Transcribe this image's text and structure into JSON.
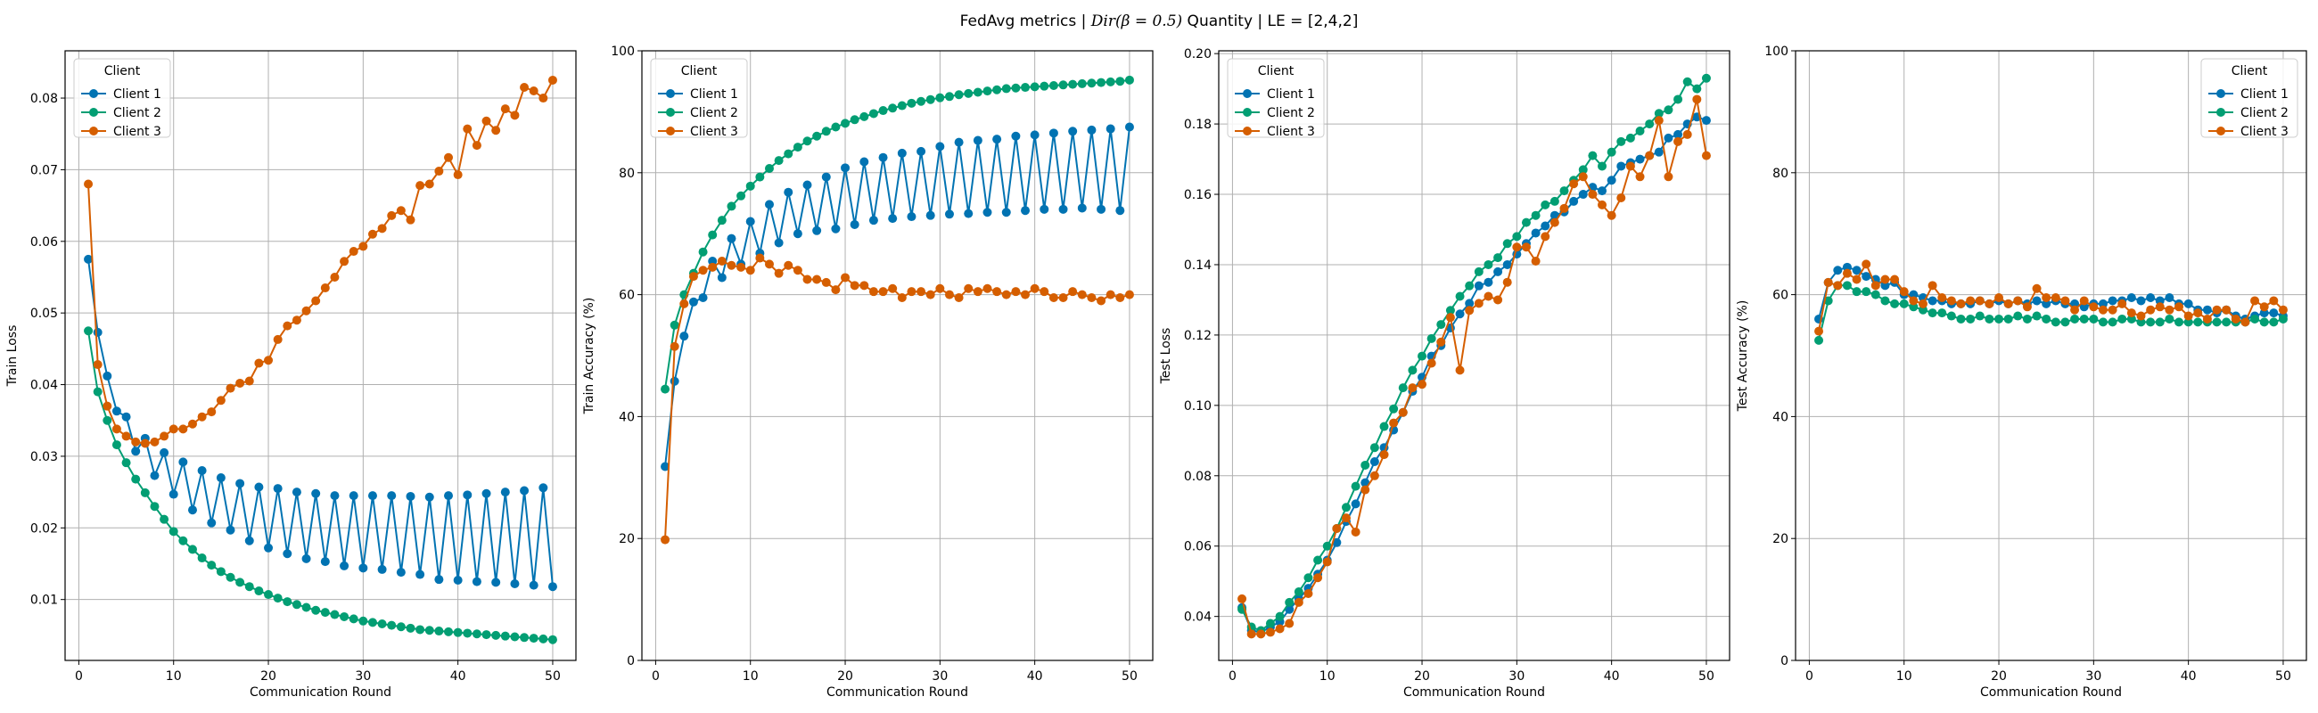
{
  "figure": {
    "title_prefix": "FedAvg metrics | ",
    "title_math": "Dir(β = 0.5)",
    "title_suffix": " Quantity | LE = [2,4,2]"
  },
  "colors": {
    "Client 1": "#0173b2",
    "Client 2": "#029e73",
    "Client 3": "#d55e00"
  },
  "chart_data": [
    {
      "type": "line",
      "xlabel": "Communication Round",
      "ylabel": "Train Loss",
      "xlim": [
        -1.45,
        52.45
      ],
      "ylim": [
        0.0015,
        0.0866
      ],
      "xticks": [
        0,
        10,
        20,
        30,
        40,
        50
      ],
      "yticks": [
        0.01,
        0.02,
        0.03,
        0.04,
        0.05,
        0.06,
        0.07,
        0.08
      ],
      "ytick_labels": [
        "0.01",
        "0.02",
        "0.03",
        "0.04",
        "0.05",
        "0.06",
        "0.07",
        "0.08"
      ],
      "legend": {
        "title": "Client",
        "location": "upper left"
      },
      "grid": true,
      "series": [
        {
          "name": "Client 1",
          "values": [
            0.0575,
            0.0473,
            0.0412,
            0.0363,
            0.0355,
            0.0307,
            0.0325,
            0.0273,
            0.0305,
            0.0247,
            0.0292,
            0.0225,
            0.028,
            0.0207,
            0.027,
            0.0197,
            0.0262,
            0.0182,
            0.0257,
            0.0172,
            0.0255,
            0.0164,
            0.025,
            0.0157,
            0.0248,
            0.0153,
            0.0245,
            0.0147,
            0.0245,
            0.0144,
            0.0245,
            0.0142,
            0.0245,
            0.0138,
            0.0244,
            0.0135,
            0.0243,
            0.0128,
            0.0245,
            0.0127,
            0.0246,
            0.0125,
            0.0248,
            0.0124,
            0.025,
            0.0122,
            0.0252,
            0.012,
            0.0256,
            0.0118
          ]
        },
        {
          "name": "Client 2",
          "values": [
            0.0475,
            0.039,
            0.035,
            0.0316,
            0.0291,
            0.0268,
            0.0249,
            0.023,
            0.0212,
            0.0195,
            0.0182,
            0.017,
            0.0158,
            0.0148,
            0.0139,
            0.0131,
            0.0124,
            0.0118,
            0.0112,
            0.0107,
            0.0102,
            0.0097,
            0.0093,
            0.0089,
            0.0085,
            0.0082,
            0.0079,
            0.0076,
            0.0073,
            0.007,
            0.0068,
            0.0066,
            0.0064,
            0.0062,
            0.006,
            0.0058,
            0.0057,
            0.0056,
            0.0055,
            0.0054,
            0.0053,
            0.0052,
            0.0051,
            0.005,
            0.0049,
            0.0048,
            0.0047,
            0.0046,
            0.0045,
            0.0044
          ]
        },
        {
          "name": "Client 3",
          "values": [
            0.068,
            0.0428,
            0.037,
            0.0338,
            0.0328,
            0.032,
            0.0318,
            0.032,
            0.0328,
            0.0338,
            0.0338,
            0.0345,
            0.0355,
            0.0362,
            0.0378,
            0.0395,
            0.0402,
            0.0405,
            0.043,
            0.0434,
            0.0463,
            0.0482,
            0.049,
            0.0503,
            0.0517,
            0.0535,
            0.055,
            0.0572,
            0.0586,
            0.0593,
            0.061,
            0.0618,
            0.0636,
            0.0643,
            0.063,
            0.0678,
            0.068,
            0.0698,
            0.0717,
            0.0693,
            0.0757,
            0.0734,
            0.0768,
            0.0755,
            0.0785,
            0.0776,
            0.0815,
            0.081,
            0.08,
            0.0825
          ]
        }
      ]
    },
    {
      "type": "line",
      "xlabel": "Communication Round",
      "ylabel": "Train Accuracy (%)",
      "xlim": [
        -1.45,
        52.45
      ],
      "ylim": [
        0,
        100
      ],
      "xticks": [
        0,
        10,
        20,
        30,
        40,
        50
      ],
      "yticks": [
        0,
        20,
        40,
        60,
        80,
        100
      ],
      "ytick_labels": [
        "0",
        "20",
        "40",
        "60",
        "80",
        "100"
      ],
      "legend": {
        "title": "Client",
        "location": "upper left"
      },
      "grid": true,
      "series": [
        {
          "name": "Client 1",
          "values": [
            31.8,
            45.8,
            53.2,
            58.8,
            59.5,
            65.5,
            62.8,
            69.2,
            65.0,
            72.0,
            66.8,
            74.8,
            68.5,
            76.8,
            70.0,
            78.0,
            70.5,
            79.3,
            70.8,
            80.8,
            71.5,
            81.8,
            72.2,
            82.5,
            72.5,
            83.2,
            72.8,
            83.5,
            73.0,
            84.3,
            73.2,
            85.0,
            73.3,
            85.3,
            73.5,
            85.5,
            73.5,
            86.0,
            73.8,
            86.2,
            74.0,
            86.5,
            74.0,
            86.8,
            74.2,
            87.0,
            74.0,
            87.2,
            73.8,
            87.5
          ]
        },
        {
          "name": "Client 2",
          "values": [
            44.5,
            55.0,
            60.0,
            63.5,
            67.0,
            69.8,
            72.2,
            74.5,
            76.2,
            77.8,
            79.3,
            80.7,
            82.0,
            83.1,
            84.2,
            85.2,
            86.0,
            86.8,
            87.5,
            88.1,
            88.7,
            89.2,
            89.7,
            90.2,
            90.6,
            91.0,
            91.4,
            91.7,
            92.0,
            92.3,
            92.5,
            92.8,
            93.0,
            93.2,
            93.4,
            93.6,
            93.8,
            93.9,
            94.0,
            94.1,
            94.2,
            94.3,
            94.4,
            94.5,
            94.6,
            94.7,
            94.8,
            94.9,
            95.0,
            95.2
          ]
        },
        {
          "name": "Client 3",
          "values": [
            19.8,
            51.5,
            58.5,
            63.0,
            64.0,
            64.5,
            65.5,
            64.8,
            64.5,
            64.0,
            66.0,
            65.0,
            63.5,
            64.8,
            64.0,
            62.5,
            62.5,
            62.0,
            60.8,
            62.8,
            61.5,
            61.5,
            60.5,
            60.5,
            61.0,
            59.5,
            60.5,
            60.5,
            60.0,
            61.0,
            60.0,
            59.5,
            61.0,
            60.5,
            61.0,
            60.5,
            60.0,
            60.5,
            60.0,
            61.0,
            60.5,
            59.5,
            59.5,
            60.5,
            60.0,
            59.5,
            59.0,
            60.0,
            59.5,
            60.0
          ]
        }
      ]
    },
    {
      "type": "line",
      "xlabel": "Communication Round",
      "ylabel": "Test Loss",
      "xlim": [
        -1.45,
        52.45
      ],
      "ylim": [
        0.0275,
        0.2008
      ],
      "xticks": [
        0,
        10,
        20,
        30,
        40,
        50
      ],
      "yticks": [
        0.04,
        0.06,
        0.08,
        0.1,
        0.12,
        0.14,
        0.16,
        0.18,
        0.2
      ],
      "ytick_labels": [
        "0.04",
        "0.06",
        "0.08",
        "0.10",
        "0.12",
        "0.14",
        "0.16",
        "0.18",
        "0.20"
      ],
      "legend": {
        "title": "Client",
        "location": "upper left"
      },
      "grid": true,
      "series": [
        {
          "name": "Client 1",
          "values": [
            0.0425,
            0.036,
            0.0355,
            0.037,
            0.0385,
            0.042,
            0.045,
            0.048,
            0.052,
            0.056,
            0.061,
            0.067,
            0.072,
            0.078,
            0.084,
            0.088,
            0.093,
            0.098,
            0.104,
            0.108,
            0.114,
            0.117,
            0.122,
            0.126,
            0.129,
            0.134,
            0.135,
            0.138,
            0.14,
            0.143,
            0.146,
            0.149,
            0.151,
            0.154,
            0.155,
            0.158,
            0.16,
            0.162,
            0.161,
            0.164,
            0.168,
            0.169,
            0.17,
            0.171,
            0.172,
            0.176,
            0.177,
            0.18,
            0.182,
            0.181
          ]
        },
        {
          "name": "Client 2",
          "values": [
            0.042,
            0.037,
            0.036,
            0.038,
            0.04,
            0.044,
            0.047,
            0.051,
            0.056,
            0.06,
            0.065,
            0.071,
            0.077,
            0.083,
            0.088,
            0.094,
            0.099,
            0.105,
            0.11,
            0.114,
            0.119,
            0.123,
            0.127,
            0.131,
            0.134,
            0.138,
            0.14,
            0.142,
            0.146,
            0.148,
            0.152,
            0.154,
            0.157,
            0.158,
            0.161,
            0.164,
            0.167,
            0.171,
            0.168,
            0.172,
            0.175,
            0.176,
            0.178,
            0.18,
            0.183,
            0.184,
            0.187,
            0.192,
            0.19,
            0.193
          ]
        },
        {
          "name": "Client 3",
          "values": [
            0.045,
            0.035,
            0.035,
            0.0355,
            0.0365,
            0.038,
            0.044,
            0.0465,
            0.051,
            0.0555,
            0.065,
            0.068,
            0.064,
            0.076,
            0.08,
            0.086,
            0.095,
            0.098,
            0.105,
            0.106,
            0.112,
            0.118,
            0.125,
            0.11,
            0.127,
            0.129,
            0.131,
            0.13,
            0.135,
            0.145,
            0.145,
            0.141,
            0.148,
            0.152,
            0.156,
            0.163,
            0.165,
            0.16,
            0.157,
            0.154,
            0.159,
            0.168,
            0.165,
            0.171,
            0.181,
            0.165,
            0.175,
            0.177,
            0.187,
            0.171
          ]
        }
      ]
    },
    {
      "type": "line",
      "xlabel": "Communication Round",
      "ylabel": "Test Accuracy (%)",
      "xlim": [
        -1.45,
        52.45
      ],
      "ylim": [
        0,
        100
      ],
      "xticks": [
        0,
        10,
        20,
        30,
        40,
        50
      ],
      "yticks": [
        0,
        20,
        40,
        60,
        80,
        100
      ],
      "ytick_labels": [
        "0",
        "20",
        "40",
        "60",
        "80",
        "100"
      ],
      "legend": {
        "title": "Client",
        "location": "upper right"
      },
      "grid": true,
      "series": [
        {
          "name": "Client 1",
          "values": [
            56.0,
            62.0,
            64.0,
            64.5,
            64.0,
            63.0,
            62.5,
            61.5,
            62.0,
            60.0,
            60.0,
            59.5,
            59.0,
            59.0,
            58.5,
            58.5,
            58.5,
            59.0,
            58.5,
            59.0,
            58.5,
            59.0,
            58.5,
            59.0,
            58.5,
            59.0,
            58.5,
            58.5,
            58.0,
            58.5,
            58.5,
            59.0,
            59.0,
            59.5,
            59.0,
            59.5,
            59.0,
            59.5,
            58.5,
            58.5,
            57.5,
            57.5,
            57.0,
            57.5,
            56.5,
            56.0,
            56.5,
            57.0,
            57.0,
            56.5
          ]
        },
        {
          "name": "Client 2",
          "values": [
            52.5,
            59.0,
            61.5,
            61.5,
            60.5,
            60.5,
            60.0,
            59.0,
            58.5,
            58.5,
            58.0,
            57.5,
            57.0,
            57.0,
            56.5,
            56.0,
            56.0,
            56.5,
            56.0,
            56.0,
            56.0,
            56.5,
            56.0,
            56.5,
            56.0,
            55.5,
            55.5,
            56.0,
            56.0,
            56.0,
            55.5,
            55.5,
            56.0,
            56.0,
            55.5,
            55.5,
            55.5,
            56.0,
            55.5,
            55.5,
            55.5,
            55.5,
            55.5,
            55.5,
            55.5,
            55.5,
            56.0,
            55.5,
            55.5,
            56.0
          ]
        },
        {
          "name": "Client 3",
          "values": [
            54.0,
            62.0,
            61.5,
            63.5,
            62.5,
            65.0,
            61.5,
            62.5,
            62.5,
            60.5,
            59.0,
            58.5,
            61.5,
            59.5,
            59.0,
            58.5,
            59.0,
            59.0,
            58.5,
            59.5,
            58.5,
            59.0,
            58.0,
            61.0,
            59.5,
            59.5,
            59.0,
            57.5,
            59.0,
            58.0,
            57.5,
            57.5,
            58.5,
            57.0,
            56.5,
            57.5,
            58.0,
            57.5,
            58.0,
            56.5,
            57.0,
            56.0,
            57.5,
            57.5,
            56.0,
            55.5,
            59.0,
            58.0,
            59.0,
            57.5
          ]
        }
      ]
    }
  ]
}
